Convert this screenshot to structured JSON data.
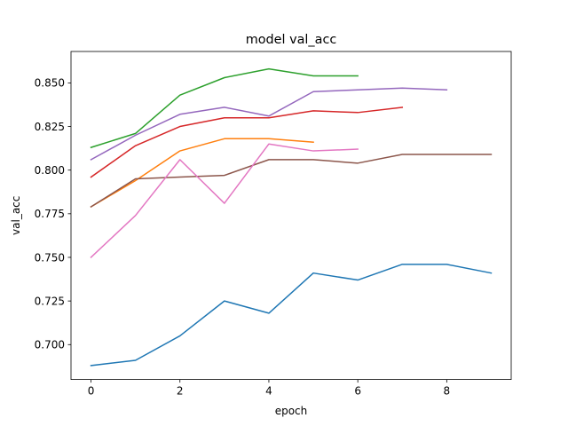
{
  "chart_data": {
    "type": "line",
    "title": "model val_acc",
    "xlabel": "epoch",
    "ylabel": "val_acc",
    "xlim": [
      -0.45,
      9.45
    ],
    "ylim": [
      0.68,
      0.868
    ],
    "xticks": [
      0,
      2,
      4,
      6,
      8
    ],
    "yticks": [
      0.7,
      0.725,
      0.75,
      0.775,
      0.8,
      0.825,
      0.85
    ],
    "grid": false,
    "legend": "none",
    "series": [
      {
        "color": "#1f77b4",
        "x": [
          0,
          1,
          2,
          3,
          4,
          5,
          6,
          7,
          8,
          9
        ],
        "values": [
          0.688,
          0.691,
          0.705,
          0.725,
          0.718,
          0.741,
          0.737,
          0.746,
          0.746,
          0.741
        ]
      },
      {
        "color": "#ff7f0e",
        "x": [
          0,
          1,
          2,
          3,
          4,
          5
        ],
        "values": [
          0.779,
          0.794,
          0.811,
          0.818,
          0.818,
          0.816
        ]
      },
      {
        "color": "#2ca02c",
        "x": [
          0,
          1,
          2,
          3,
          4,
          5,
          6
        ],
        "values": [
          0.813,
          0.821,
          0.843,
          0.853,
          0.858,
          0.854,
          0.854
        ]
      },
      {
        "color": "#d62728",
        "x": [
          0,
          1,
          2,
          3,
          4,
          5,
          6,
          7
        ],
        "values": [
          0.796,
          0.814,
          0.825,
          0.83,
          0.83,
          0.834,
          0.833,
          0.836
        ]
      },
      {
        "color": "#9467bd",
        "x": [
          0,
          1,
          2,
          3,
          4,
          5,
          6,
          7,
          8
        ],
        "values": [
          0.806,
          0.82,
          0.832,
          0.836,
          0.831,
          0.845,
          0.846,
          0.847,
          0.846
        ]
      },
      {
        "color": "#8c564b",
        "x": [
          0,
          1,
          2,
          3,
          4,
          5,
          6,
          7,
          8,
          9
        ],
        "values": [
          0.779,
          0.795,
          0.796,
          0.797,
          0.806,
          0.806,
          0.804,
          0.809,
          0.809,
          0.809
        ]
      },
      {
        "color": "#e377c2",
        "x": [
          0,
          1,
          2,
          3,
          4,
          5,
          6
        ],
        "values": [
          0.75,
          0.774,
          0.806,
          0.781,
          0.815,
          0.811,
          0.812
        ]
      }
    ]
  }
}
